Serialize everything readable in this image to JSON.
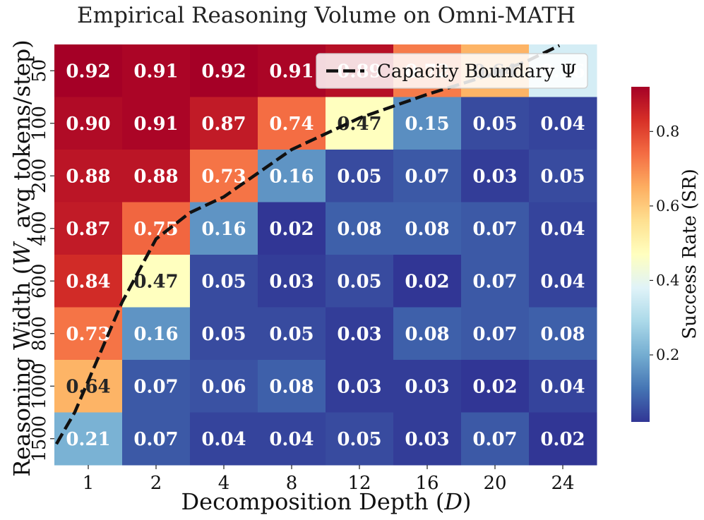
{
  "chart_data": {
    "type": "heatmap",
    "title": "Empirical Reasoning Volume on Omni-MATH",
    "xlabel_parts": [
      "Decomposition Depth (",
      "D",
      ")"
    ],
    "ylabel_parts": [
      "Reasoning Width (",
      "W",
      ", avg tokens/step)"
    ],
    "x_categories": [
      "1",
      "2",
      "4",
      "8",
      "12",
      "16",
      "20",
      "24"
    ],
    "y_categories": [
      "50",
      "100",
      "200",
      "400",
      "600",
      "800",
      "1000",
      "1500"
    ],
    "values": [
      [
        0.92,
        0.91,
        0.92,
        0.91,
        0.89,
        0.72,
        0.64,
        0.36
      ],
      [
        0.9,
        0.91,
        0.87,
        0.74,
        0.47,
        0.15,
        0.05,
        0.04
      ],
      [
        0.88,
        0.88,
        0.73,
        0.16,
        0.05,
        0.07,
        0.03,
        0.05
      ],
      [
        0.87,
        0.75,
        0.16,
        0.02,
        0.08,
        0.08,
        0.07,
        0.04
      ],
      [
        0.84,
        0.47,
        0.05,
        0.03,
        0.05,
        0.02,
        0.07,
        0.04
      ],
      [
        0.73,
        0.16,
        0.05,
        0.05,
        0.03,
        0.08,
        0.07,
        0.08
      ],
      [
        0.64,
        0.07,
        0.06,
        0.08,
        0.03,
        0.03,
        0.02,
        0.04
      ],
      [
        0.21,
        0.07,
        0.04,
        0.04,
        0.05,
        0.03,
        0.07,
        0.02
      ]
    ],
    "value_format": "0.00",
    "color_scale": "RdYlBu_r",
    "vmin": 0.02,
    "vmax": 0.92,
    "colorbar": {
      "label": "Success Rate (SR)",
      "ticks": [
        0.2,
        0.4,
        0.6,
        0.8
      ]
    },
    "boundary": {
      "name": "Capacity Boundary Ψ",
      "style": "dashed",
      "color": "#111111",
      "points": [
        [
          -0.47,
          7.1
        ],
        [
          -0.2,
          6.5
        ],
        [
          0.0,
          5.9
        ],
        [
          0.4,
          4.7
        ],
        [
          0.5,
          4.4
        ],
        [
          1.0,
          3.2
        ],
        [
          1.5,
          2.7
        ],
        [
          2.0,
          2.4
        ],
        [
          3.0,
          1.5
        ],
        [
          4.0,
          0.9
        ],
        [
          5.0,
          0.45
        ],
        [
          6.0,
          0.05
        ],
        [
          6.5,
          -0.2
        ],
        [
          6.95,
          -0.48
        ]
      ]
    },
    "legend": {
      "placement": "top-right",
      "entries": [
        "Capacity Boundary Ψ"
      ]
    }
  }
}
